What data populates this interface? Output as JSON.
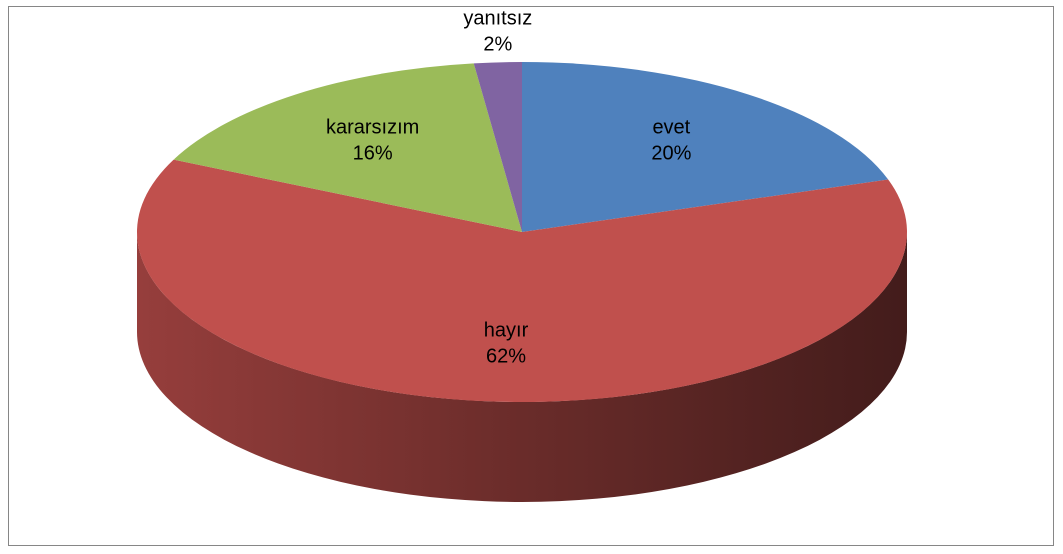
{
  "chart_data": {
    "type": "pie",
    "categories": [
      "evet",
      "hayır",
      "kararsızım",
      "yanıtsız"
    ],
    "values": [
      20,
      62,
      16,
      2
    ],
    "value_labels": [
      "20%",
      "62%",
      "16%",
      "2%"
    ],
    "colors": [
      "#4f81bd",
      "#c0504d",
      "#9bbb59",
      "#8064a2"
    ]
  }
}
